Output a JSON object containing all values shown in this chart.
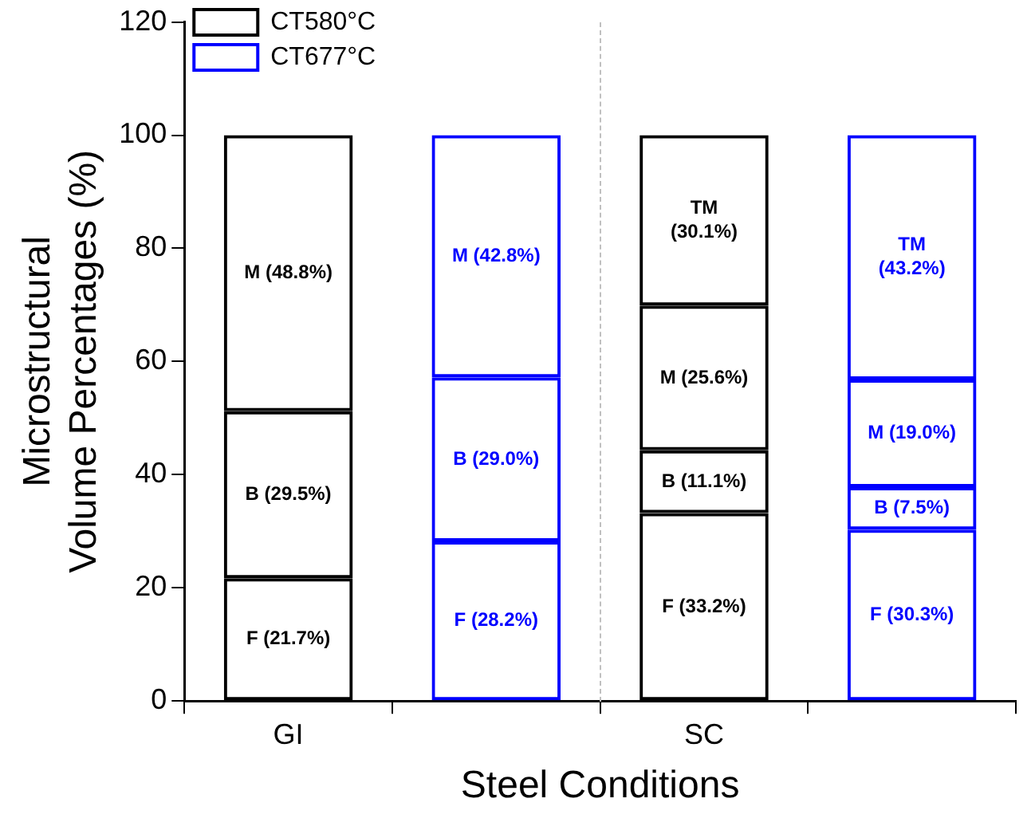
{
  "chart_data": {
    "type": "bar",
    "stacked": true,
    "xlabel": "Steel Conditions",
    "ylabel": "Microstructural\nVolume Percentages (%)",
    "categories": [
      "GI",
      null,
      "SC",
      null
    ],
    "ylim": [
      0,
      120
    ],
    "yticks": [
      0,
      20,
      40,
      60,
      80,
      100,
      120
    ],
    "grid": false,
    "legend": "top left",
    "series": [
      {
        "name": "CT580°C",
        "color": "#000000",
        "values": [
          21.7,
          null,
          33.2,
          null
        ],
        "value_labels": [
          "F (21.7%)",
          null,
          "F (33.2%)",
          null
        ]
      },
      {
        "color": "#000000",
        "values": [
          29.5,
          null,
          11.1,
          null
        ],
        "value_labels": [
          "B (29.5%)",
          null,
          "B (11.1%)",
          null
        ]
      },
      {
        "color": "#000000",
        "values": [
          48.8,
          null,
          25.6,
          null
        ],
        "value_labels": [
          "M (48.8%)",
          null,
          "M (25.6%)",
          null
        ]
      },
      {
        "color": "#000000",
        "values": [
          null,
          null,
          30.1,
          null
        ],
        "value_labels": [
          null,
          null,
          "TM\n(30.1%)",
          null
        ]
      },
      {
        "name": "CT677°C",
        "color": "#0000ff",
        "values": [
          null,
          28.2,
          null,
          30.3
        ],
        "value_labels": [
          null,
          "F (28.2%)",
          null,
          "F (30.3%)"
        ]
      },
      {
        "color": "#0000ff",
        "values": [
          null,
          29.0,
          null,
          7.5
        ],
        "value_labels": [
          null,
          "B (29.0%)",
          null,
          "B (7.5%)"
        ]
      },
      {
        "color": "#0000ff",
        "values": [
          null,
          42.8,
          null,
          19.0
        ],
        "value_labels": [
          null,
          "M (42.8%)",
          null,
          "M (19.0%)"
        ]
      },
      {
        "color": "#0000ff",
        "values": [
          null,
          null,
          null,
          43.2
        ],
        "value_labels": [
          null,
          null,
          null,
          "TM\n(43.2%)"
        ]
      }
    ]
  }
}
